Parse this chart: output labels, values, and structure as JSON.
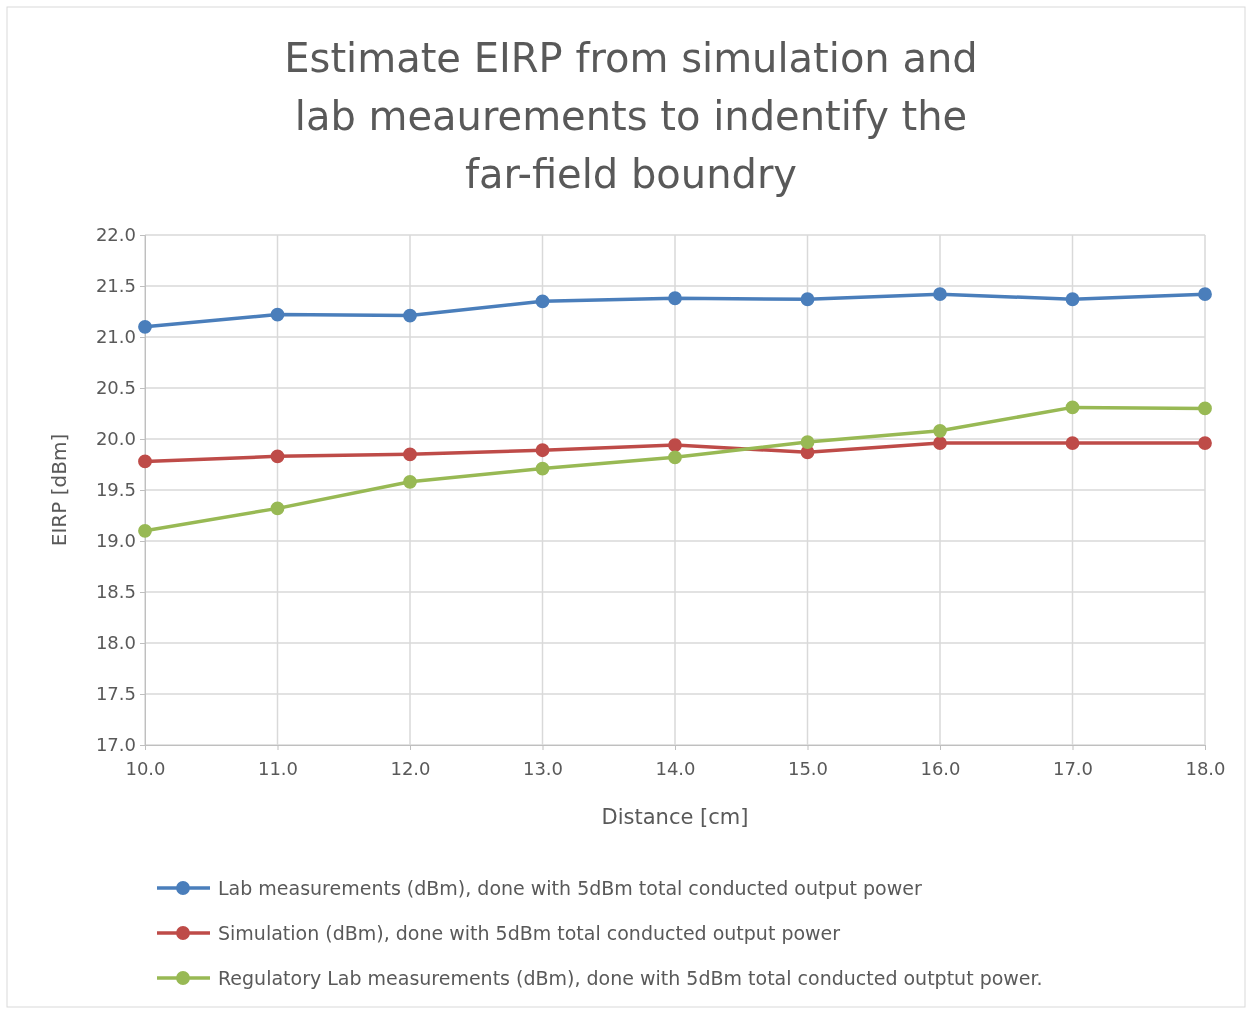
{
  "chart_data": {
    "type": "line",
    "title": "Estimate EIRP from simulation and lab meaurements to indentify the far-field boundry",
    "xlabel": "Distance [cm]",
    "ylabel": "EIRP [dBm]",
    "x": [
      10,
      11,
      12,
      13,
      14,
      15,
      16,
      17,
      18
    ],
    "series": [
      {
        "name": "Lab measurements (dBm), done with 5dBm total conducted output power",
        "color": "#4a7ebb",
        "values": [
          21.1,
          21.22,
          21.21,
          21.35,
          21.38,
          21.37,
          21.42,
          21.37,
          21.42
        ]
      },
      {
        "name": "Simulation (dBm), done with 5dBm total conducted output power",
        "color": "#be4b48",
        "values": [
          19.78,
          19.83,
          19.85,
          19.89,
          19.94,
          19.87,
          19.96,
          19.96,
          19.96
        ]
      },
      {
        "name": "Regulatory Lab measurements (dBm), done with 5dBm total conducted outptut power.",
        "color": "#98b954",
        "values": [
          19.1,
          19.32,
          19.58,
          19.71,
          19.82,
          19.97,
          20.08,
          20.31,
          20.3
        ]
      }
    ],
    "xlim": [
      10,
      18
    ],
    "xticks": [
      {
        "value": 10,
        "label": "10.0"
      },
      {
        "value": 11,
        "label": "11.0"
      },
      {
        "value": 12,
        "label": "12.0"
      },
      {
        "value": 13,
        "label": "13.0"
      },
      {
        "value": 14,
        "label": "14.0"
      },
      {
        "value": 15,
        "label": "15.0"
      },
      {
        "value": 16,
        "label": "16.0"
      },
      {
        "value": 17,
        "label": "17.0"
      },
      {
        "value": 18,
        "label": "18.0"
      }
    ],
    "ylim": [
      17,
      22
    ],
    "yticks": [
      {
        "value": 17,
        "label": "17.0"
      },
      {
        "value": 17.5,
        "label": "17.5"
      },
      {
        "value": 18,
        "label": "18.0"
      },
      {
        "value": 18.5,
        "label": "18.5"
      },
      {
        "value": 19,
        "label": "19.0"
      },
      {
        "value": 19.5,
        "label": "19.5"
      },
      {
        "value": 20,
        "label": "20.0"
      },
      {
        "value": 20.5,
        "label": "20.5"
      },
      {
        "value": 21,
        "label": "21.0"
      },
      {
        "value": 21.5,
        "label": "21.5"
      },
      {
        "value": 22,
        "label": "22.0"
      }
    ],
    "grid": true,
    "legend": "bottom",
    "marker": "circle",
    "line_style": "solid"
  }
}
